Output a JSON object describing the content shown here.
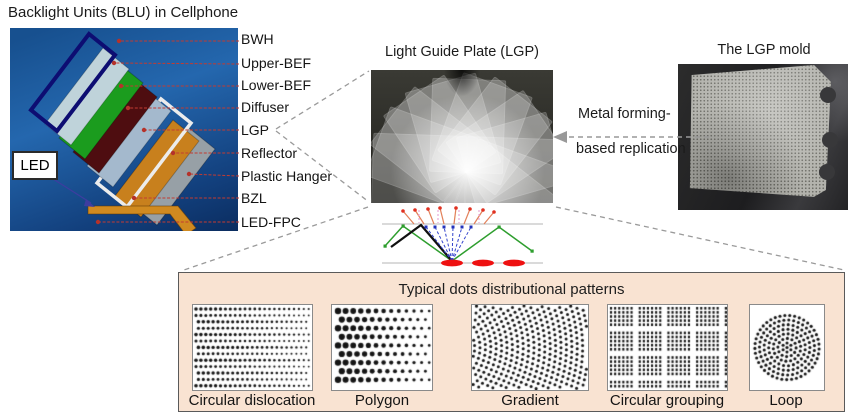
{
  "titles": {
    "blu": "Backlight Units (BLU)  in Cellphone",
    "lgp": "Light Guide Plate (LGP)",
    "mold": "The LGP mold"
  },
  "led_label": "LED",
  "replication": {
    "line1": "Metal forming-",
    "line2": "based replication"
  },
  "blu_layers": [
    "BWH",
    "Upper-BEF",
    "Lower-BEF",
    "Diffuser",
    "LGP",
    "Reflector",
    "Plastic Hanger",
    "BZL",
    "LED-FPC"
  ],
  "patterns_panel": {
    "title": "Typical dots distributional patterns",
    "patterns": [
      {
        "label": "Circular dislocation",
        "type": "circular-dislocation"
      },
      {
        "label": "Polygon",
        "type": "polygon"
      },
      {
        "label": "Gradient",
        "type": "gradient"
      },
      {
        "label": "Circular grouping",
        "type": "circular-grouping"
      },
      {
        "label": "Loop",
        "type": "loop"
      }
    ]
  },
  "colors": {
    "panel_bg": "#f9e3d2",
    "leader_red": "#c23b32",
    "connector_gray": "#9a9a9a",
    "dot_red": "#ee1111",
    "bwh_navy": "#0d0d72",
    "upper_bef": "#bfd3da",
    "lower_bef_green": "#1b9c1e",
    "diffuser_maroon": "#4e0d10",
    "lgp_plate": "#a4b9cd",
    "reflector_orange": "#c8801d",
    "hanger_gray": "#97a0a6",
    "led_fpc_orange": "#d08a20"
  }
}
